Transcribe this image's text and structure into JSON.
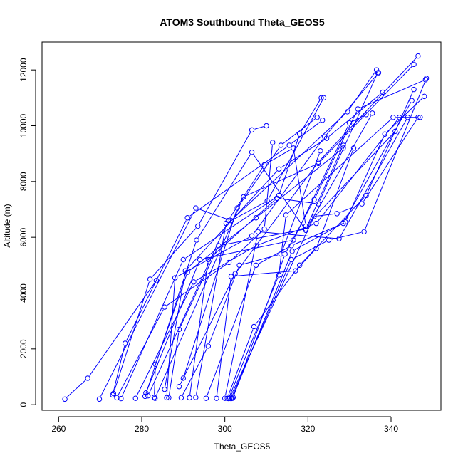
{
  "chart_data": {
    "type": "scatter",
    "title": "ATOM3 Southbound Theta_GEOS5",
    "xlabel": "Theta_GEOS5",
    "ylabel": "Altitude (m)",
    "xlim": [
      256,
      352
    ],
    "ylim": [
      -200,
      13000
    ],
    "xticks": [
      260,
      280,
      300,
      320,
      340
    ],
    "yticks": [
      0,
      2000,
      4000,
      6000,
      8000,
      10000,
      12000
    ],
    "grid": false,
    "legend": "none",
    "color": "#0000ff",
    "series": [
      {
        "x": [
          261.5,
          267,
          283.5
        ],
        "y": [
          200,
          950,
          4450
        ]
      },
      {
        "x": [
          269.8,
          293,
          301.5,
          329.5,
          336.5
        ],
        "y": [
          200,
          7050,
          6600,
          10500,
          12000
        ]
      },
      {
        "x": [
          273,
          276,
          291,
          315.5,
          323.5
        ],
        "y": [
          350,
          2200,
          6700,
          9300,
          10200
        ]
      },
      {
        "x": [
          273.2,
          282,
          293.5,
          306.5,
          310
        ],
        "y": [
          400,
          4500,
          6400,
          9850,
          10000
        ]
      },
      {
        "x": [
          274,
          285.5,
          301,
          309.5,
          311.5
        ],
        "y": [
          250,
          3500,
          5100,
          6300,
          9400
        ]
      },
      {
        "x": [
          275,
          290,
          313,
          318,
          323.2
        ],
        "y": [
          220,
          5200,
          7500,
          9700,
          11000
        ]
      },
      {
        "x": [
          278.5,
          292.5,
          307.5,
          322,
          342
        ],
        "y": [
          230,
          4400,
          5700,
          6500,
          10300
        ]
      },
      {
        "x": [
          280.8,
          293.2,
          306.5,
          319.5,
          335.5
        ],
        "y": [
          300,
          5900,
          9050,
          6250,
          10450
        ]
      },
      {
        "x": [
          281,
          294,
          316.5,
          330,
          334
        ],
        "y": [
          420,
          5200,
          5900,
          10100,
          10400
        ]
      },
      {
        "x": [
          281.5,
          300.8,
          309.5,
          316.5,
          319.5,
          341
        ],
        "y": [
          320,
          6600,
          8600,
          9200,
          6400,
          9800
        ]
      },
      {
        "x": [
          283,
          283.3,
          291,
          307.5,
          328.5
        ],
        "y": [
          260,
          1450,
          4750,
          6700,
          9200
        ]
      },
      {
        "x": [
          283.2,
          304.5,
          322.5,
          345.5
        ],
        "y": [
          230,
          7450,
          8650,
          12200
        ]
      },
      {
        "x": [
          285.5,
          290.5,
          313,
          324.5,
          338
        ],
        "y": [
          550,
          4800,
          8450,
          9550,
          11200
        ]
      },
      {
        "x": [
          286,
          288,
          306.5,
          324,
          337
        ],
        "y": [
          250,
          4550,
          6050,
          9600,
          11900
        ]
      },
      {
        "x": [
          286.5,
          289,
          298.5,
          319.5,
          328.5
        ],
        "y": [
          250,
          2700,
          5700,
          6300,
          9300
        ]
      },
      {
        "x": [
          289,
          302.5,
          322.5,
          346.5
        ],
        "y": [
          650,
          4700,
          8700,
          12500
        ]
      },
      {
        "x": [
          289.5,
          296,
          303.5,
          313.5,
          323
        ],
        "y": [
          250,
          2100,
          5000,
          5400,
          9100
        ]
      },
      {
        "x": [
          290,
          303,
          313.5,
          322.2
        ],
        "y": [
          950,
          7050,
          9300,
          10300
        ]
      },
      {
        "x": [
          291.5,
          296,
          312.5,
          322.5,
          336.8
        ],
        "y": [
          250,
          5200,
          7400,
          7200,
          11900
        ]
      },
      {
        "x": [
          293,
          300.3,
          310.2,
          323.8
        ],
        "y": [
          260,
          6500,
          7300,
          11000
        ]
      },
      {
        "x": [
          295.5,
          307.5,
          316,
          328.5,
          345
        ],
        "y": [
          230,
          5000,
          5700,
          6500,
          10900
        ]
      },
      {
        "x": [
          298,
          301.5,
          317,
          322,
          331
        ],
        "y": [
          230,
          4600,
          4800,
          5600,
          9200
        ]
      },
      {
        "x": [
          300,
          308,
          327.5,
          344
        ],
        "y": [
          230,
          6200,
          5950,
          10300
        ]
      },
      {
        "x": [
          300.6,
          307,
          318,
          334,
          345.5
        ],
        "y": [
          230,
          2800,
          5000,
          7500,
          11300
        ]
      },
      {
        "x": [
          300.9,
          313,
          314.7,
          340.5,
          347
        ],
        "y": [
          220,
          4650,
          6800,
          10300,
          10300
        ]
      },
      {
        "x": [
          301.2,
          321.5,
          327,
          333,
          346.5
        ],
        "y": [
          240,
          6750,
          6850,
          7200,
          10300
        ]
      },
      {
        "x": [
          301.5,
          316,
          325,
          333.5,
          348.5
        ],
        "y": [
          220,
          5200,
          5900,
          6200,
          11700
        ]
      },
      {
        "x": [
          301.8,
          316.2,
          329,
          338.5,
          348
        ],
        "y": [
          230,
          5500,
          6550,
          9700,
          11050
        ]
      },
      {
        "x": [
          302,
          314.5,
          321.5,
          332,
          348.3
        ],
        "y": [
          260,
          5400,
          7350,
          10600,
          11650
        ]
      }
    ]
  }
}
